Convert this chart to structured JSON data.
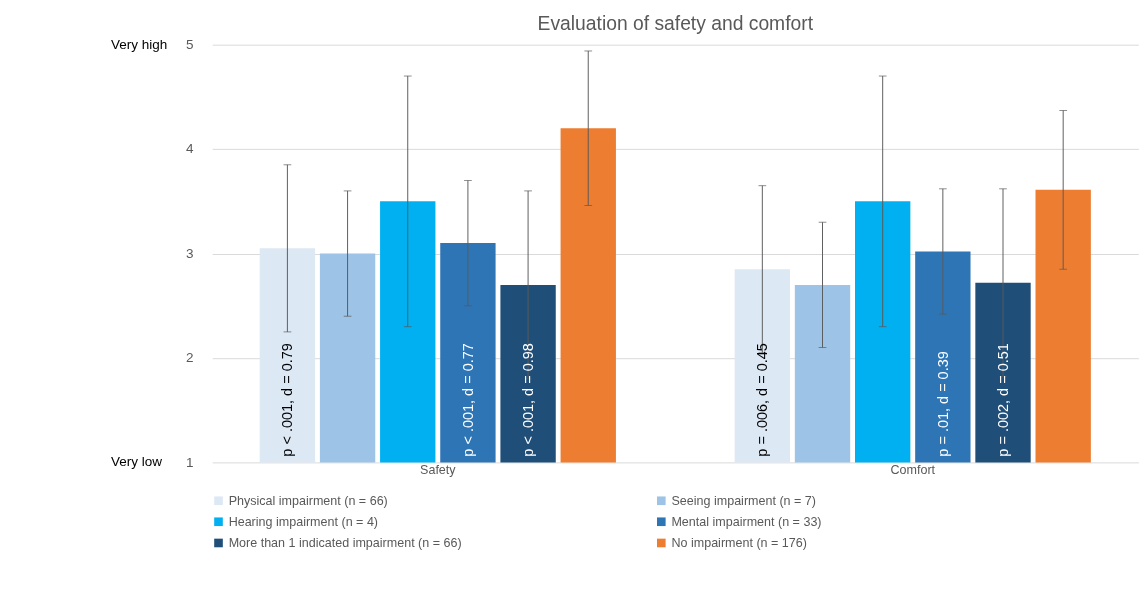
{
  "chart_data": {
    "type": "bar",
    "title": "Evaluation of safety and comfort",
    "categories": [
      "Safety",
      "Comfort"
    ],
    "series": [
      {
        "name": "Physical impairment (n = 66)",
        "color": "#dde8f5",
        "values": [
          3.05,
          2.85
        ],
        "errors": [
          0.8,
          0.8
        ],
        "value_labels": [
          "p < .001, d = 0.79",
          "p = .006, d = 0.45"
        ]
      },
      {
        "name": "Seeing impairment (n = 7)",
        "color": "#9dc3e6",
        "values": [
          3.0,
          2.7
        ],
        "errors": [
          0.6,
          0.6
        ],
        "value_labels": [
          null,
          null
        ]
      },
      {
        "name": "Hearing impairment (n = 4)",
        "color": "#00b0f0",
        "values": [
          3.5,
          3.5
        ],
        "errors": [
          1.2,
          1.2
        ],
        "value_labels": [
          null,
          null
        ]
      },
      {
        "name": "Mental impairment (n = 33)",
        "color": "#2e75b6",
        "values": [
          3.1,
          3.02
        ],
        "errors": [
          0.6,
          0.6
        ],
        "value_labels": [
          "p < .001, d = 0.77",
          "p = .01, d = 0.39"
        ]
      },
      {
        "name": "More than 1 indicated impairment (n = 66)",
        "color": "#1f4e79",
        "values": [
          2.7,
          2.72
        ],
        "errors": [
          0.9,
          0.9
        ],
        "value_labels": [
          "p < .001, d = 0.98",
          "p = .002, d = 0.51"
        ]
      },
      {
        "name": "No impairment (n = 176)",
        "color": "#ed7d31",
        "values": [
          4.2,
          3.61
        ],
        "errors": [
          0.74,
          0.76
        ],
        "value_labels": [
          null,
          null
        ]
      }
    ],
    "ylim": [
      1,
      5
    ],
    "yticks": [
      1,
      2,
      3,
      4,
      5
    ],
    "grid": "y",
    "legend": "bottom",
    "annotations": [
      "Very high",
      "Very low"
    ]
  }
}
